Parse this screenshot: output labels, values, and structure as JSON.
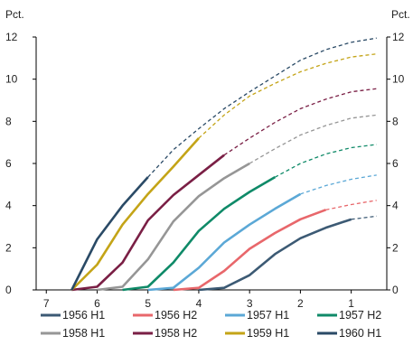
{
  "chart_data": {
    "type": "line",
    "y_unit_left": "Pct.",
    "y_unit_right": "Pct.",
    "ylim": [
      0,
      12
    ],
    "y_ticks": [
      0,
      2,
      4,
      6,
      8,
      10,
      12
    ],
    "x_ticks": [
      7,
      6,
      5,
      4,
      3,
      2,
      1
    ],
    "xlim": [
      7.2,
      0.3
    ],
    "x_reversed": true,
    "grid": false,
    "legend_position": "bottom",
    "series": [
      {
        "name": "1956 H1",
        "color": "#3c5a74",
        "solid": [
          [
            4,
            0
          ],
          [
            3.5,
            0.1
          ],
          [
            3,
            0.7
          ],
          [
            2.5,
            1.7
          ],
          [
            2,
            2.45
          ],
          [
            1.5,
            2.95
          ],
          [
            1,
            3.35
          ]
        ],
        "dashed": [
          [
            1,
            3.35
          ],
          [
            0.5,
            3.5
          ]
        ]
      },
      {
        "name": "1956 H2",
        "color": "#e8676b",
        "solid": [
          [
            4.5,
            0
          ],
          [
            4,
            0.1
          ],
          [
            3.5,
            0.9
          ],
          [
            3,
            1.95
          ],
          [
            2.5,
            2.7
          ],
          [
            2,
            3.35
          ],
          [
            1.5,
            3.8
          ]
        ],
        "dashed": [
          [
            1.5,
            3.8
          ],
          [
            1,
            4.05
          ],
          [
            0.5,
            4.25
          ]
        ]
      },
      {
        "name": "1957 H1",
        "color": "#5ba8d6",
        "solid": [
          [
            5,
            0
          ],
          [
            4.5,
            0.1
          ],
          [
            4,
            1.05
          ],
          [
            3.5,
            2.25
          ],
          [
            3,
            3.1
          ],
          [
            2.5,
            3.85
          ],
          [
            2,
            4.55
          ]
        ],
        "dashed": [
          [
            2,
            4.55
          ],
          [
            1.5,
            4.95
          ],
          [
            1,
            5.25
          ],
          [
            0.5,
            5.45
          ]
        ]
      },
      {
        "name": "1957 H2",
        "color": "#0f8a68",
        "solid": [
          [
            5.5,
            0
          ],
          [
            5,
            0.15
          ],
          [
            4.5,
            1.3
          ],
          [
            4,
            2.8
          ],
          [
            3.5,
            3.85
          ],
          [
            3,
            4.65
          ],
          [
            2.5,
            5.35
          ]
        ],
        "dashed": [
          [
            2.5,
            5.35
          ],
          [
            2,
            6.0
          ],
          [
            1.5,
            6.45
          ],
          [
            1,
            6.75
          ],
          [
            0.5,
            6.9
          ]
        ]
      },
      {
        "name": "1958 H1",
        "color": "#969696",
        "solid": [
          [
            6,
            0
          ],
          [
            5.5,
            0.15
          ],
          [
            5,
            1.45
          ],
          [
            4.5,
            3.25
          ],
          [
            4,
            4.45
          ],
          [
            3.5,
            5.3
          ],
          [
            3,
            6.0
          ]
        ],
        "dashed": [
          [
            3,
            6.0
          ],
          [
            2.5,
            6.7
          ],
          [
            2,
            7.35
          ],
          [
            1.5,
            7.8
          ],
          [
            1,
            8.15
          ],
          [
            0.5,
            8.3
          ]
        ]
      },
      {
        "name": "1958 H2",
        "color": "#7a1f45",
        "solid": [
          [
            6.5,
            0
          ],
          [
            6,
            0.15
          ],
          [
            5.5,
            1.3
          ],
          [
            5,
            3.3
          ],
          [
            4.5,
            4.5
          ],
          [
            4,
            5.45
          ],
          [
            3.5,
            6.4
          ]
        ],
        "dashed": [
          [
            3.5,
            6.4
          ],
          [
            3,
            7.2
          ],
          [
            2.5,
            7.95
          ],
          [
            2,
            8.6
          ],
          [
            1.5,
            9.05
          ],
          [
            1,
            9.4
          ],
          [
            0.5,
            9.55
          ]
        ]
      },
      {
        "name": "1959 H1",
        "color": "#c4a417",
        "solid": [
          [
            6.5,
            0
          ],
          [
            6,
            1.2
          ],
          [
            5.5,
            3.1
          ],
          [
            5,
            4.55
          ],
          [
            4.5,
            5.85
          ],
          [
            4,
            7.2
          ]
        ],
        "dashed": [
          [
            4,
            7.2
          ],
          [
            3.5,
            8.3
          ],
          [
            3,
            9.2
          ],
          [
            2.5,
            9.8
          ],
          [
            2,
            10.35
          ],
          [
            1.5,
            10.75
          ],
          [
            1,
            11.05
          ],
          [
            0.5,
            11.2
          ]
        ]
      },
      {
        "name": "1960 H1",
        "color": "#2a4a66",
        "solid": [
          [
            6.5,
            0
          ],
          [
            6,
            2.4
          ],
          [
            5.5,
            4.0
          ],
          [
            5,
            5.35
          ]
        ],
        "dashed": [
          [
            5,
            5.35
          ],
          [
            4.5,
            6.65
          ],
          [
            4,
            7.65
          ],
          [
            3.5,
            8.6
          ],
          [
            3,
            9.4
          ],
          [
            2.5,
            10.15
          ],
          [
            2,
            10.9
          ],
          [
            1.5,
            11.4
          ],
          [
            1,
            11.75
          ],
          [
            0.5,
            11.95
          ]
        ]
      }
    ]
  }
}
